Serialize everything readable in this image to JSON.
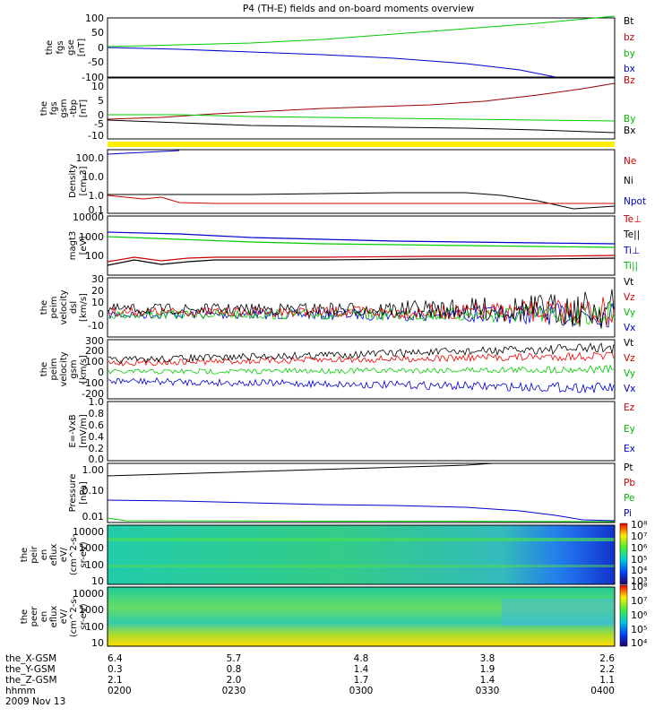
{
  "title": "P4 (TH-E) fields and on-board moments overview",
  "panels": [
    {
      "id": "fgs_gse",
      "ylabel": [
        "the",
        "fgs",
        "gse",
        "[nT]"
      ],
      "yticks": [
        "100",
        "50",
        "0",
        "-50",
        "-100"
      ],
      "labels": [
        {
          "text": "Bt",
          "color": "#000000"
        },
        {
          "text": "bz",
          "color": "#cc0000"
        },
        {
          "text": "by",
          "color": "#00bb00"
        },
        {
          "text": "bx",
          "color": "#0000cc"
        }
      ]
    },
    {
      "id": "fgs_gsm",
      "ylabel": [
        "the",
        "fgs",
        "gsm",
        "-tbp",
        "[nT]"
      ],
      "yticks": [
        "10",
        "5",
        "0",
        "-5",
        "-10"
      ],
      "labels": [
        {
          "text": "Bz",
          "color": "#cc0000"
        },
        {
          "text": "By",
          "color": "#00bb00"
        },
        {
          "text": "Bx",
          "color": "#000000"
        }
      ]
    },
    {
      "id": "density",
      "ylabel": [
        "Density",
        "[cm-3]"
      ],
      "yticks": [
        "100.0",
        "10.0",
        "1.0",
        "0.1"
      ],
      "labels": [
        {
          "text": "Ne",
          "color": "#cc0000"
        },
        {
          "text": "Ni",
          "color": "#000000"
        },
        {
          "text": "Npot",
          "color": "#0000cc"
        }
      ]
    },
    {
      "id": "temp",
      "ylabel": [
        "magt3",
        "[eV]"
      ],
      "yticks": [
        "10000",
        "1000",
        "100"
      ],
      "labels": [
        {
          "text": "Te⊥",
          "color": "#cc0000"
        },
        {
          "text": "Te||",
          "color": "#000000"
        },
        {
          "text": "Ti⊥",
          "color": "#0000cc"
        },
        {
          "text": "Ti||",
          "color": "#00bb00"
        }
      ]
    },
    {
      "id": "peim_dsl",
      "ylabel": [
        "the",
        "peim",
        "velocity",
        "dsl",
        "[km/s]"
      ],
      "yticks": [
        "30",
        "20",
        "10",
        "0",
        "-10"
      ],
      "labels": [
        {
          "text": "Vt",
          "color": "#000000"
        },
        {
          "text": "Vz",
          "color": "#cc0000"
        },
        {
          "text": "Vy",
          "color": "#00bb00"
        },
        {
          "text": "Vx",
          "color": "#0000cc"
        }
      ]
    },
    {
      "id": "peim_gsm",
      "ylabel": [
        "the",
        "peim",
        "velocity",
        "gsm",
        "[km/s]"
      ],
      "yticks": [
        "300",
        "200",
        "100",
        "0",
        "-100",
        "-200"
      ],
      "labels": [
        {
          "text": "Vt",
          "color": "#000000"
        },
        {
          "text": "Vz",
          "color": "#cc0000"
        },
        {
          "text": "Vy",
          "color": "#00bb00"
        },
        {
          "text": "Vx",
          "color": "#0000cc"
        }
      ]
    },
    {
      "id": "efield",
      "ylabel": [
        "E=-VxB",
        "[mV/m]"
      ],
      "yticks": [
        "1.0",
        "0.8",
        "0.6",
        "0.4",
        "0.2",
        "0.0"
      ],
      "labels": [
        {
          "text": "Ez",
          "color": "#cc0000"
        },
        {
          "text": "Ey",
          "color": "#00bb00"
        },
        {
          "text": "Ex",
          "color": "#0000cc"
        }
      ]
    },
    {
      "id": "pressure",
      "ylabel": [
        "Pressure",
        "[nPa]"
      ],
      "yticks": [
        "1.00",
        "0.10",
        "0.01"
      ],
      "labels": [
        {
          "text": "Pt",
          "color": "#000000"
        },
        {
          "text": "Pb",
          "color": "#cc0000"
        },
        {
          "text": "Pe",
          "color": "#00bb00"
        },
        {
          "text": "Pi",
          "color": "#0000cc"
        }
      ]
    },
    {
      "id": "peir",
      "ylabel": [
        "the",
        "peir",
        "en",
        "eflux",
        "eV/",
        "(cm^2-s-",
        "sr-eV)"
      ],
      "yticks": [
        "10000",
        "1000",
        "100",
        "10"
      ],
      "colorbar": [
        "10⁸",
        "10⁷",
        "10⁶",
        "10⁵",
        "10⁴",
        "10³"
      ]
    },
    {
      "id": "peer",
      "ylabel": [
        "the",
        "peer",
        "en",
        "eflux",
        "eV/",
        "(cm^2-s-",
        "sr-eV)"
      ],
      "yticks": [
        "10000",
        "1000",
        "100",
        "10"
      ],
      "colorbar": [
        "10⁸",
        "10⁷",
        "10⁶",
        "10⁵",
        "10⁴"
      ]
    }
  ],
  "xaxis": {
    "rows": [
      {
        "label": "the_X-GSM",
        "values": [
          "6.4",
          "5.7",
          "4.8",
          "3.8",
          "2.6"
        ]
      },
      {
        "label": "the_Y-GSM",
        "values": [
          "0.3",
          "0.8",
          "1.4",
          "1.9",
          "2.2"
        ]
      },
      {
        "label": "the_Z-GSM",
        "values": [
          "2.1",
          "2.0",
          "1.7",
          "1.4",
          "1.1"
        ]
      },
      {
        "label": "hhmm",
        "values": [
          "0200",
          "0230",
          "0300",
          "0330",
          "0400"
        ]
      }
    ],
    "date": "2009 Nov 13"
  },
  "chart_data": {
    "type": "line",
    "x": [
      "0200",
      "0230",
      "0300",
      "0330",
      "0400"
    ],
    "series": [
      {
        "name": "Bt",
        "panel": "fgs_gse",
        "x": [
          "0200",
          "0230",
          "0300",
          "0330",
          "0400"
        ],
        "values": [
          2,
          12,
          35,
          65,
          105
        ]
      },
      {
        "name": "bx",
        "panel": "fgs_gse",
        "x": [
          "0200",
          "0230",
          "0300",
          "0330",
          "0400"
        ],
        "values": [
          0,
          -10,
          -25,
          -55,
          -100
        ]
      },
      {
        "name": "Bz",
        "panel": "fgs_gsm",
        "x": [
          "0200",
          "0230",
          "0300",
          "0330",
          "0400"
        ],
        "values": [
          -1,
          0,
          3,
          6,
          12
        ]
      },
      {
        "name": "By",
        "panel": "fgs_gsm",
        "x": [
          "0200",
          "0230",
          "0300",
          "0330",
          "0400"
        ],
        "values": [
          1,
          0,
          -1,
          -1,
          -2
        ]
      },
      {
        "name": "Bx",
        "panel": "fgs_gsm",
        "x": [
          "0200",
          "0230",
          "0300",
          "0330",
          "0400"
        ],
        "values": [
          -4,
          -3,
          -5,
          -7,
          -8
        ]
      },
      {
        "name": "Ni",
        "panel": "density",
        "x": [
          "0200",
          "0230",
          "0300",
          "0330",
          "0400"
        ],
        "values": [
          1.2,
          1.3,
          1.5,
          1.1,
          0.2
        ]
      },
      {
        "name": "Ne",
        "panel": "density",
        "x": [
          "0200",
          "0230",
          "0300",
          "0330",
          "0400"
        ],
        "values": [
          0.5,
          0.4,
          0.4,
          0.4,
          0.4
        ]
      },
      {
        "name": "Ti⊥",
        "panel": "temp",
        "x": [
          "0200",
          "0230",
          "0300",
          "0330",
          "0400"
        ],
        "values": [
          1500,
          900,
          700,
          500,
          400
        ]
      },
      {
        "name": "Te⊥",
        "panel": "temp",
        "x": [
          "0200",
          "0230",
          "0300",
          "0330",
          "0400"
        ],
        "values": [
          60,
          90,
          90,
          90,
          100
        ]
      },
      {
        "name": "Vt (gsm)",
        "panel": "peim_gsm",
        "x": [
          "0200",
          "0230",
          "0300",
          "0330",
          "0400"
        ],
        "values": [
          120,
          180,
          210,
          230,
          250
        ]
      },
      {
        "name": "Vx (gsm)",
        "panel": "peim_gsm",
        "x": [
          "0200",
          "0230",
          "0300",
          "0330",
          "0400"
        ],
        "values": [
          -60,
          -110,
          -130,
          -140,
          -150
        ]
      },
      {
        "name": "Pt",
        "panel": "pressure",
        "x": [
          "0200",
          "0230",
          "0300",
          "0330",
          "0400"
        ],
        "values": [
          0.5,
          0.7,
          0.9,
          1.1,
          1.4
        ]
      },
      {
        "name": "Pi",
        "panel": "pressure",
        "x": [
          "0200",
          "0230",
          "0300",
          "0330",
          "0400"
        ],
        "values": [
          0.15,
          0.1,
          0.08,
          0.04,
          0.01
        ]
      }
    ]
  }
}
